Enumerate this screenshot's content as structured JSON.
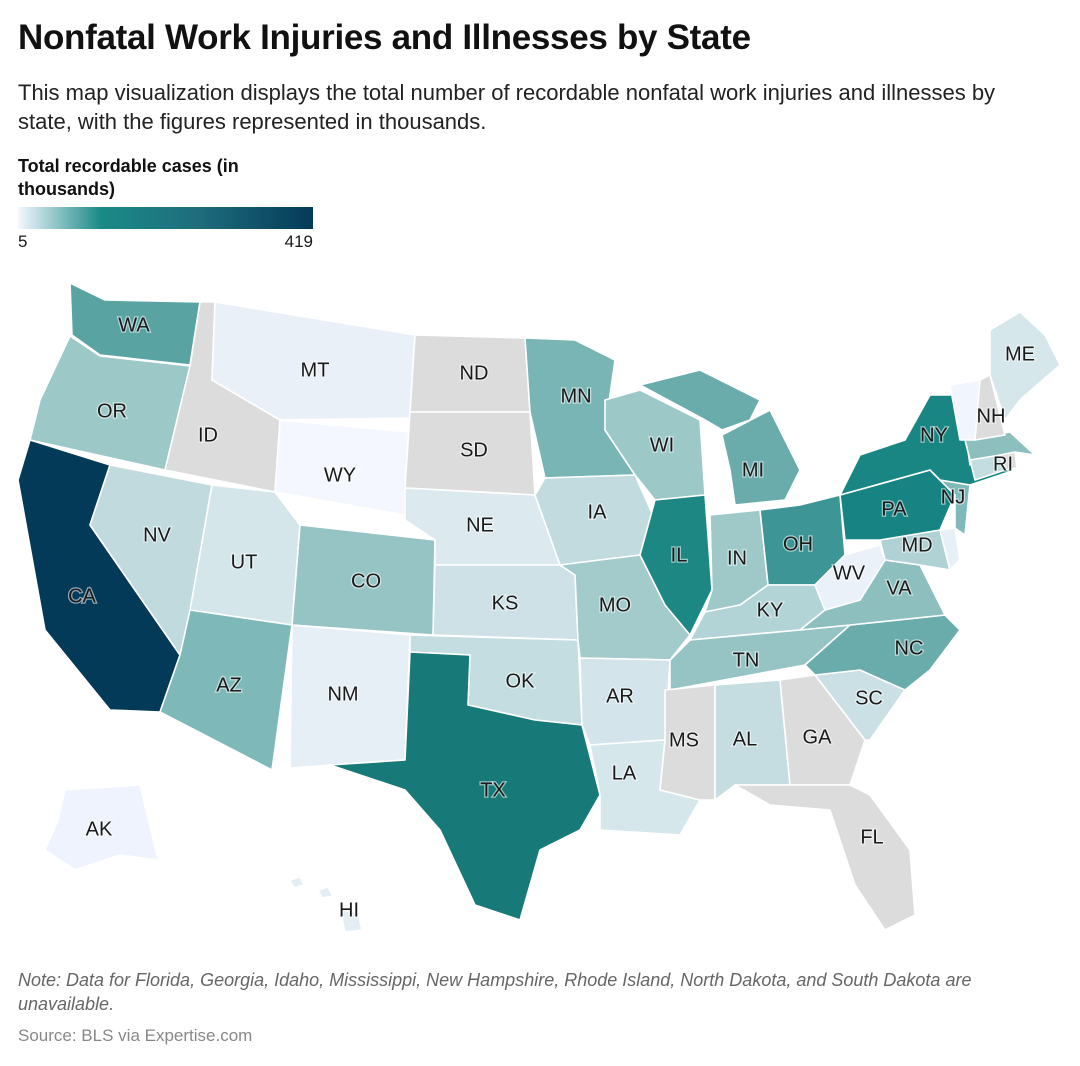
{
  "title": "Nonfatal Work Injuries and Illnesses by State",
  "subtitle": "This map visualization displays the total number of recordable nonfatal work injuries and illnesses by state, with the figures represented in thousands.",
  "legend": {
    "title": "Total recordable cases (in thousands)",
    "min_label": "5",
    "max_label": "419",
    "colors": [
      "#f4f7ff",
      "#1a8a86",
      "#1f6e7e",
      "#033a58"
    ],
    "missing_color": "#dcdcdc"
  },
  "states": [
    {
      "abbr": "WA",
      "fill": "#5aa3a3"
    },
    {
      "abbr": "OR",
      "fill": "#9cc8c8"
    },
    {
      "abbr": "CA",
      "fill": "#033a58"
    },
    {
      "abbr": "NV",
      "fill": "#c0dade"
    },
    {
      "abbr": "ID",
      "fill": "#dcdcdc"
    },
    {
      "abbr": "MT",
      "fill": "#e9f0f8"
    },
    {
      "abbr": "WY",
      "fill": "#f4f7ff"
    },
    {
      "abbr": "UT",
      "fill": "#d4e6ea"
    },
    {
      "abbr": "AZ",
      "fill": "#7fb8b8"
    },
    {
      "abbr": "CO",
      "fill": "#96c4c4"
    },
    {
      "abbr": "NM",
      "fill": "#e6eef6"
    },
    {
      "abbr": "ND",
      "fill": "#dcdcdc"
    },
    {
      "abbr": "SD",
      "fill": "#dcdcdc"
    },
    {
      "abbr": "NE",
      "fill": "#dceaf0"
    },
    {
      "abbr": "KS",
      "fill": "#cde1e6"
    },
    {
      "abbr": "OK",
      "fill": "#c4dde0"
    },
    {
      "abbr": "TX",
      "fill": "#177a78"
    },
    {
      "abbr": "MN",
      "fill": "#7ab5b5"
    },
    {
      "abbr": "IA",
      "fill": "#c2dbdf"
    },
    {
      "abbr": "MO",
      "fill": "#a3cbcb"
    },
    {
      "abbr": "AR",
      "fill": "#d3e5ea"
    },
    {
      "abbr": "LA",
      "fill": "#d6e7ec"
    },
    {
      "abbr": "WI",
      "fill": "#9cc8c8"
    },
    {
      "abbr": "IL",
      "fill": "#1d8784"
    },
    {
      "abbr": "MI",
      "fill": "#6aacac"
    },
    {
      "abbr": "IN",
      "fill": "#9fc9c9"
    },
    {
      "abbr": "OH",
      "fill": "#3d9595"
    },
    {
      "abbr": "KY",
      "fill": "#b3d4d6"
    },
    {
      "abbr": "TN",
      "fill": "#96c4c4"
    },
    {
      "abbr": "MS",
      "fill": "#dcdcdc"
    },
    {
      "abbr": "AL",
      "fill": "#c5dde0"
    },
    {
      "abbr": "GA",
      "fill": "#dcdcdc"
    },
    {
      "abbr": "FL",
      "fill": "#dcdcdc"
    },
    {
      "abbr": "SC",
      "fill": "#cbe0e5"
    },
    {
      "abbr": "NC",
      "fill": "#6aacac"
    },
    {
      "abbr": "VA",
      "fill": "#8ebfbf"
    },
    {
      "abbr": "WV",
      "fill": "#eaf1f8"
    },
    {
      "abbr": "MD",
      "fill": "#b0d2d4"
    },
    {
      "abbr": "DE",
      "fill": "#e8f0f7"
    },
    {
      "abbr": "PA",
      "fill": "#178382"
    },
    {
      "abbr": "NJ",
      "fill": "#80b9b9"
    },
    {
      "abbr": "NY",
      "fill": "#1a8683"
    },
    {
      "abbr": "CT",
      "fill": "#c4dde0"
    },
    {
      "abbr": "RI",
      "fill": "#dcdcdc"
    },
    {
      "abbr": "MA",
      "fill": "#8ebfbf"
    },
    {
      "abbr": "VT",
      "fill": "#f1f5fd"
    },
    {
      "abbr": "NH",
      "fill": "#dcdcdc"
    },
    {
      "abbr": "ME",
      "fill": "#d6e7ec"
    },
    {
      "abbr": "AK",
      "fill": "#eff3fd"
    },
    {
      "abbr": "HI",
      "fill": "#e3edf4"
    }
  ],
  "note": "Note: Data for Florida, Georgia, Idaho, Mississippi, New Hampshire, Rhode Island, North Dakota, and South Dakota are unavailable.",
  "source": "Source: BLS via Expertise.com"
}
